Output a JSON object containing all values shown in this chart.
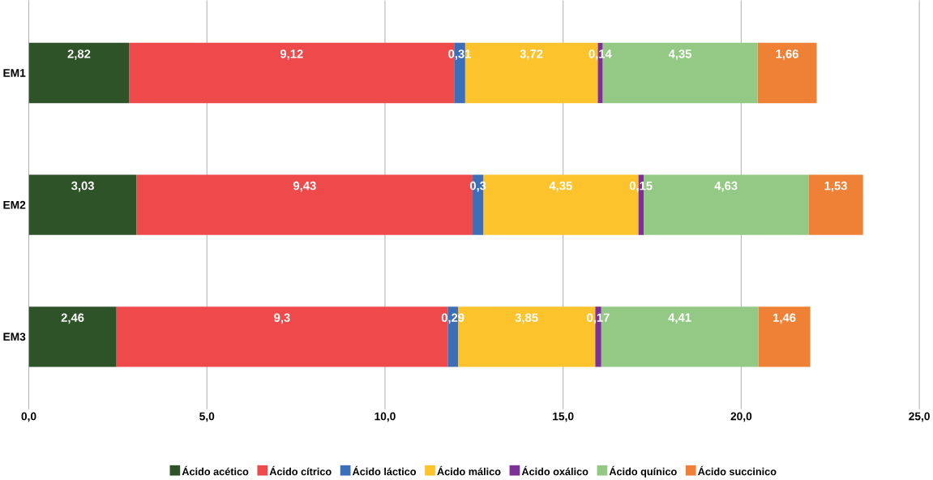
{
  "chart_data": {
    "type": "bar",
    "orientation": "horizontal",
    "stacked": true,
    "categories": [
      "EM1",
      "EM2",
      "EM3"
    ],
    "series": [
      {
        "name": "Ácido acético",
        "color": "#2e5329",
        "values": [
          2.82,
          3.03,
          2.46
        ],
        "value_labels": [
          "2,82",
          "3,03",
          "2,46"
        ]
      },
      {
        "name": "Ácido cítrico",
        "color": "#ef4a4b",
        "values": [
          9.12,
          9.43,
          9.3
        ],
        "value_labels": [
          "9,12",
          "9,43",
          "9,3"
        ]
      },
      {
        "name": "Ácido láctico",
        "color": "#3c6fb8",
        "values": [
          0.31,
          0.3,
          0.29
        ],
        "value_labels": [
          "0,31",
          "0,3",
          "0,29"
        ]
      },
      {
        "name": "Ácido málico",
        "color": "#fdc32c",
        "values": [
          3.72,
          4.35,
          3.85
        ],
        "value_labels": [
          "3,72",
          "4,35",
          "3,85"
        ]
      },
      {
        "name": "Ácido oxálico",
        "color": "#7b3294",
        "values": [
          0.14,
          0.15,
          0.17
        ],
        "value_labels": [
          "0,14",
          "0,15",
          "0,17"
        ]
      },
      {
        "name": "Ácido quínico",
        "color": "#93c984",
        "values": [
          4.35,
          4.63,
          4.41
        ],
        "value_labels": [
          "4,35",
          "4,63",
          "4,41"
        ]
      },
      {
        "name": "Ácido succinico",
        "color": "#ef8137",
        "values": [
          1.66,
          1.53,
          1.46
        ],
        "value_labels": [
          "1,66",
          "1,53",
          "1,46"
        ]
      }
    ],
    "xlim": [
      0,
      25
    ],
    "xticks": [
      {
        "value": 0,
        "label": "0,0"
      },
      {
        "value": 5,
        "label": "5,0"
      },
      {
        "value": 10,
        "label": "10,0"
      },
      {
        "value": 15,
        "label": "15,0"
      },
      {
        "value": 20,
        "label": "20,0"
      },
      {
        "value": 25,
        "label": "25,0"
      }
    ],
    "grid": "x",
    "legend": "bottom"
  }
}
